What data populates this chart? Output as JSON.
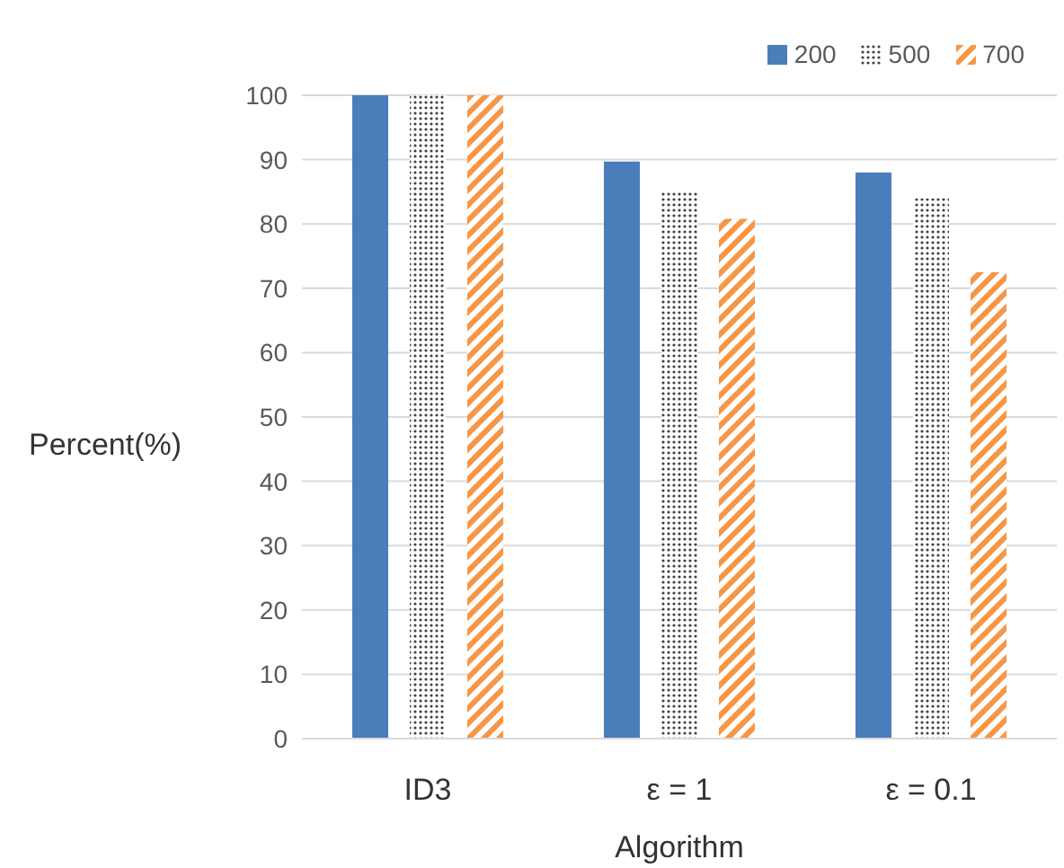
{
  "chart_data": {
    "type": "bar",
    "xlabel": "Algorithm",
    "ylabel": "Percent(%)",
    "categories": [
      "ID3",
      "ε = 1",
      "ε = 0.1"
    ],
    "series": [
      {
        "name": "200",
        "color": "#4a7ebb",
        "values": [
          100,
          89.7,
          88
        ]
      },
      {
        "name": "500",
        "color": "#404040",
        "values": [
          100,
          85.1,
          84
        ]
      },
      {
        "name": "700",
        "color": "#f79646",
        "values": [
          100,
          80.8,
          72.5
        ]
      }
    ],
    "ylim": [
      0,
      100
    ],
    "yticks": [
      0,
      10,
      20,
      30,
      40,
      50,
      60,
      70,
      80,
      90,
      100
    ],
    "grid": "y",
    "legend": "top right"
  }
}
